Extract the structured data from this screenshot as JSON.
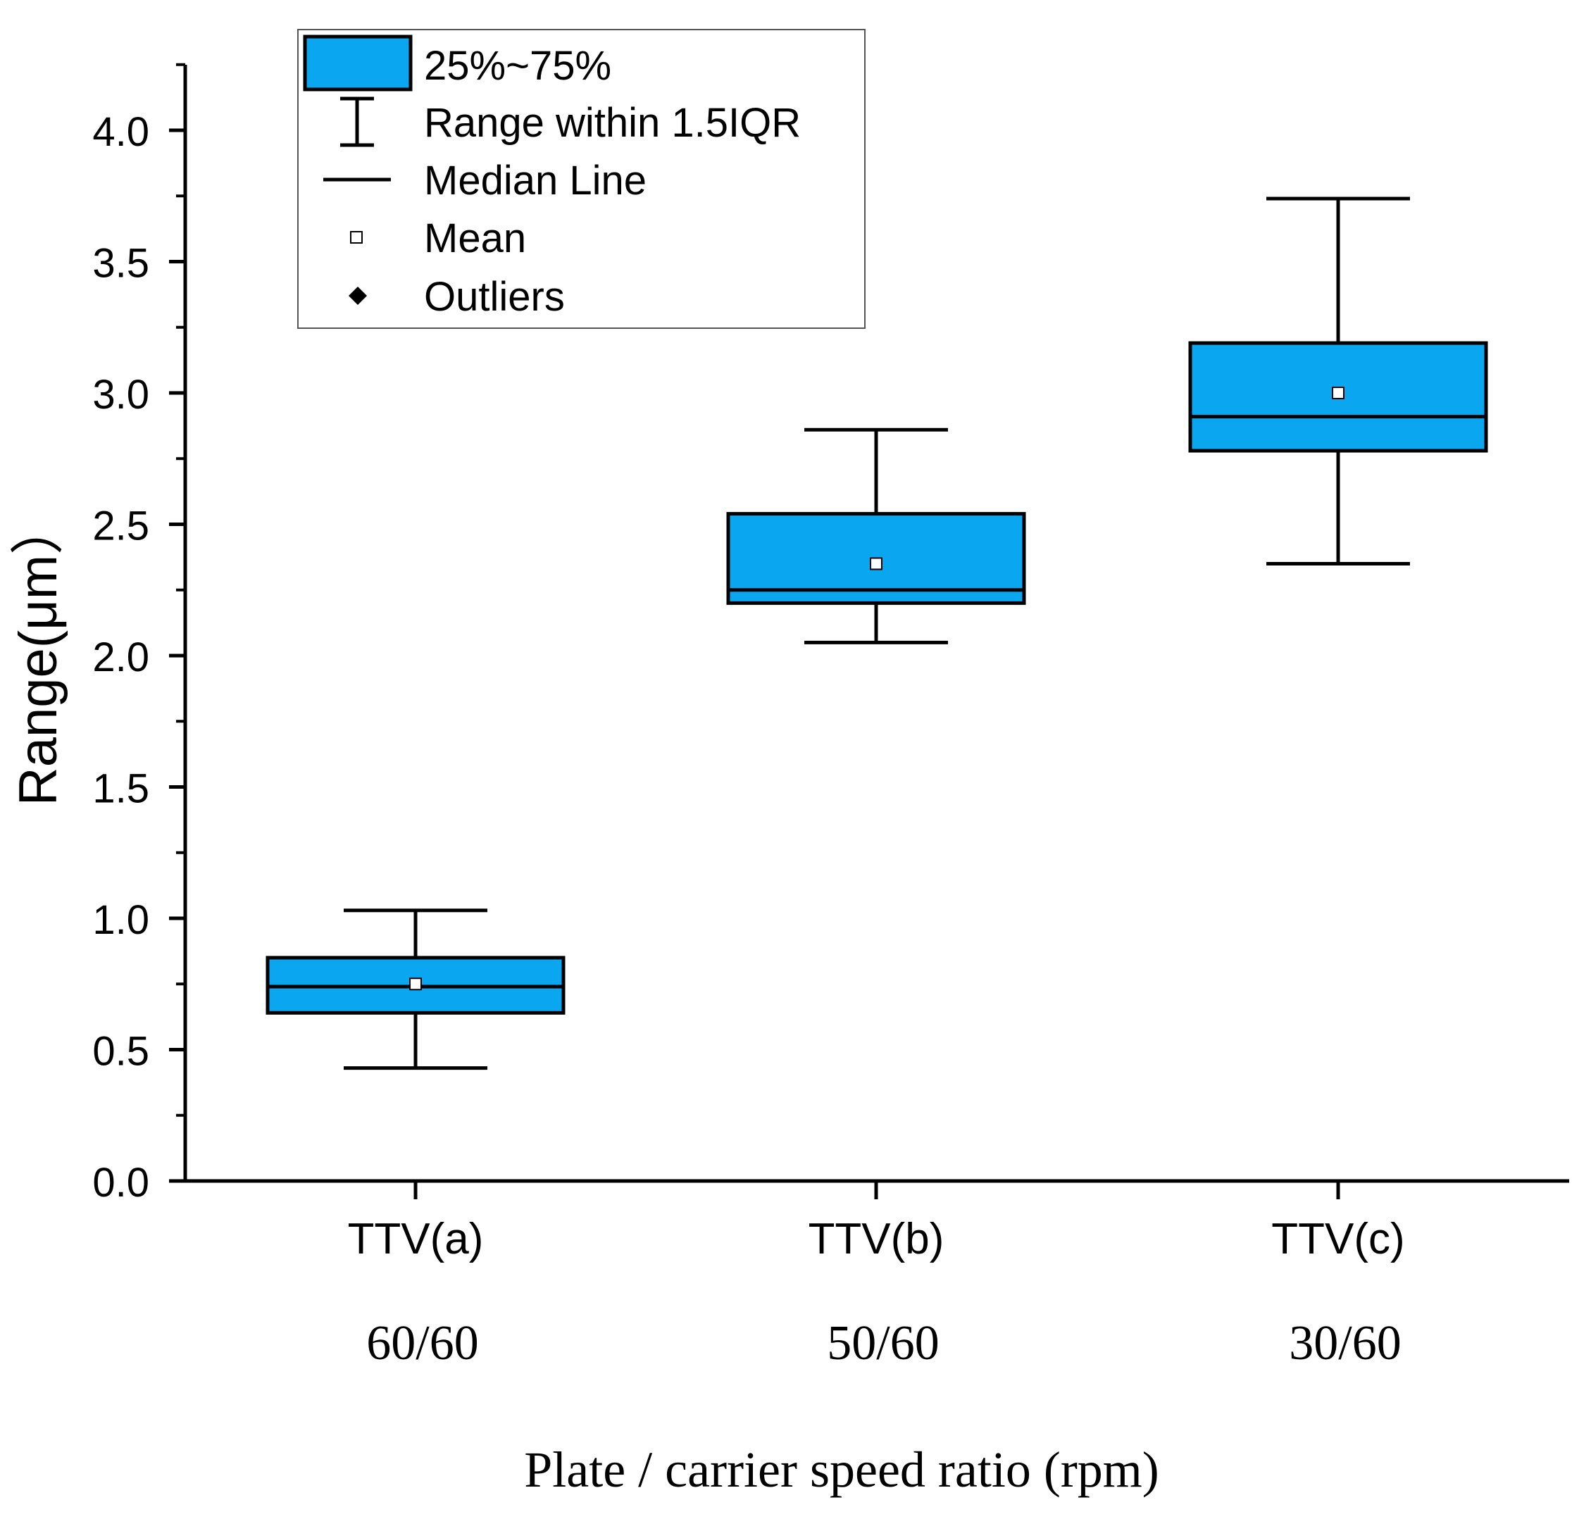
{
  "chart_data": {
    "type": "box",
    "title": "",
    "ylabel": "Range(μm）",
    "xlabel": "Plate / carrier speed ratio (rpm)",
    "ylim": [
      0,
      4.25
    ],
    "yticks": [
      "0.0",
      "0.5",
      "1.0",
      "1.5",
      "2.0",
      "2.5",
      "3.0",
      "3.5",
      "4.0"
    ],
    "ytick_values": [
      0,
      0.5,
      1.0,
      1.5,
      2.0,
      2.5,
      3.0,
      3.5,
      4.0
    ],
    "categories": [
      "TTV(a)",
      "TTV(b)",
      "TTV(c)"
    ],
    "ratios": [
      "60/60",
      "50/60",
      "30/60"
    ],
    "boxes": [
      {
        "name": "TTV(a)",
        "whisker_low": 0.43,
        "q1": 0.64,
        "median": 0.74,
        "q3": 0.85,
        "whisker_high": 1.03,
        "mean": 0.75
      },
      {
        "name": "TTV(b)",
        "whisker_low": 2.05,
        "q1": 2.2,
        "median": 2.25,
        "q3": 2.54,
        "whisker_high": 2.86,
        "mean": 2.35
      },
      {
        "name": "TTV(c)",
        "whisker_low": 2.35,
        "q1": 2.78,
        "median": 2.91,
        "q3": 3.19,
        "whisker_high": 3.74,
        "mean": 3.0
      }
    ],
    "legend": {
      "position": "top-left",
      "items": [
        "25%~75%",
        "Range within 1.5IQR",
        "Median Line",
        "Mean",
        "Outliers"
      ]
    },
    "colors": {
      "box_fill": "#0aa6f0",
      "stroke": "#000000"
    },
    "grid": false
  }
}
